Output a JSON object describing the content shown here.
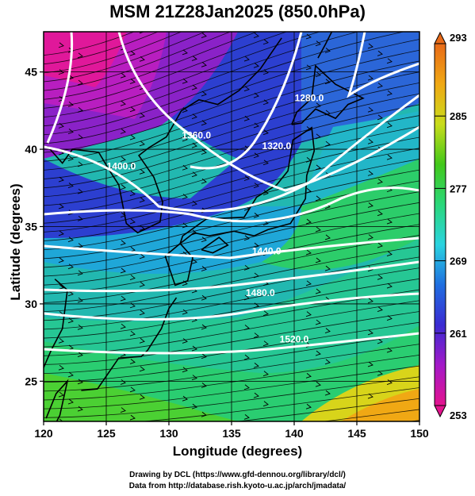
{
  "title": "MSM 21Z28Jan2025 (850.0hPa)",
  "xlabel": "Longitude (degrees)",
  "ylabel": "Latitude  (degrees)",
  "credits": [
    "Drawing by DCL (https://www.gfd-dennou.org/library/dcl/)",
    "Data from http://database.rish.kyoto-u.ac.jp/arch/jmadata/"
  ],
  "chart_data": {
    "type": "heatmap",
    "title": "MSM 21Z28Jan2025 (850.0hPa)",
    "xlabel": "Longitude (degrees)",
    "ylabel": "Latitude  (degrees)",
    "xlim": [
      120,
      150
    ],
    "ylim": [
      22.4,
      47.6
    ],
    "xticks": [
      120,
      125,
      130,
      135,
      140,
      145,
      150
    ],
    "yticks": [
      25,
      30,
      35,
      40,
      45
    ],
    "grid": true,
    "colorbar": {
      "ticks": [
        253,
        261,
        269,
        277,
        285,
        293
      ],
      "range": [
        253,
        293
      ],
      "colors": [
        "#e4138e",
        "#a419c8",
        "#3a2bd2",
        "#1f6ee0",
        "#2ad3e0",
        "#2ad77a",
        "#42c81a",
        "#c9dc1b",
        "#f0a814",
        "#e86a18"
      ]
    },
    "contours": [
      {
        "label": "1280.0",
        "lon": 141.2,
        "lat": 43.1
      },
      {
        "label": "1320.0",
        "lon": 138.6,
        "lat": 40.0
      },
      {
        "label": "1360.0",
        "lon": 132.2,
        "lat": 40.7
      },
      {
        "label": "1400.0",
        "lon": 126.2,
        "lat": 38.7
      },
      {
        "label": "1440.0",
        "lon": 137.8,
        "lat": 33.2
      },
      {
        "label": "1480.0",
        "lon": 137.3,
        "lat": 30.5
      },
      {
        "label": "1520.0",
        "lon": 140.0,
        "lat": 27.5
      }
    ]
  }
}
